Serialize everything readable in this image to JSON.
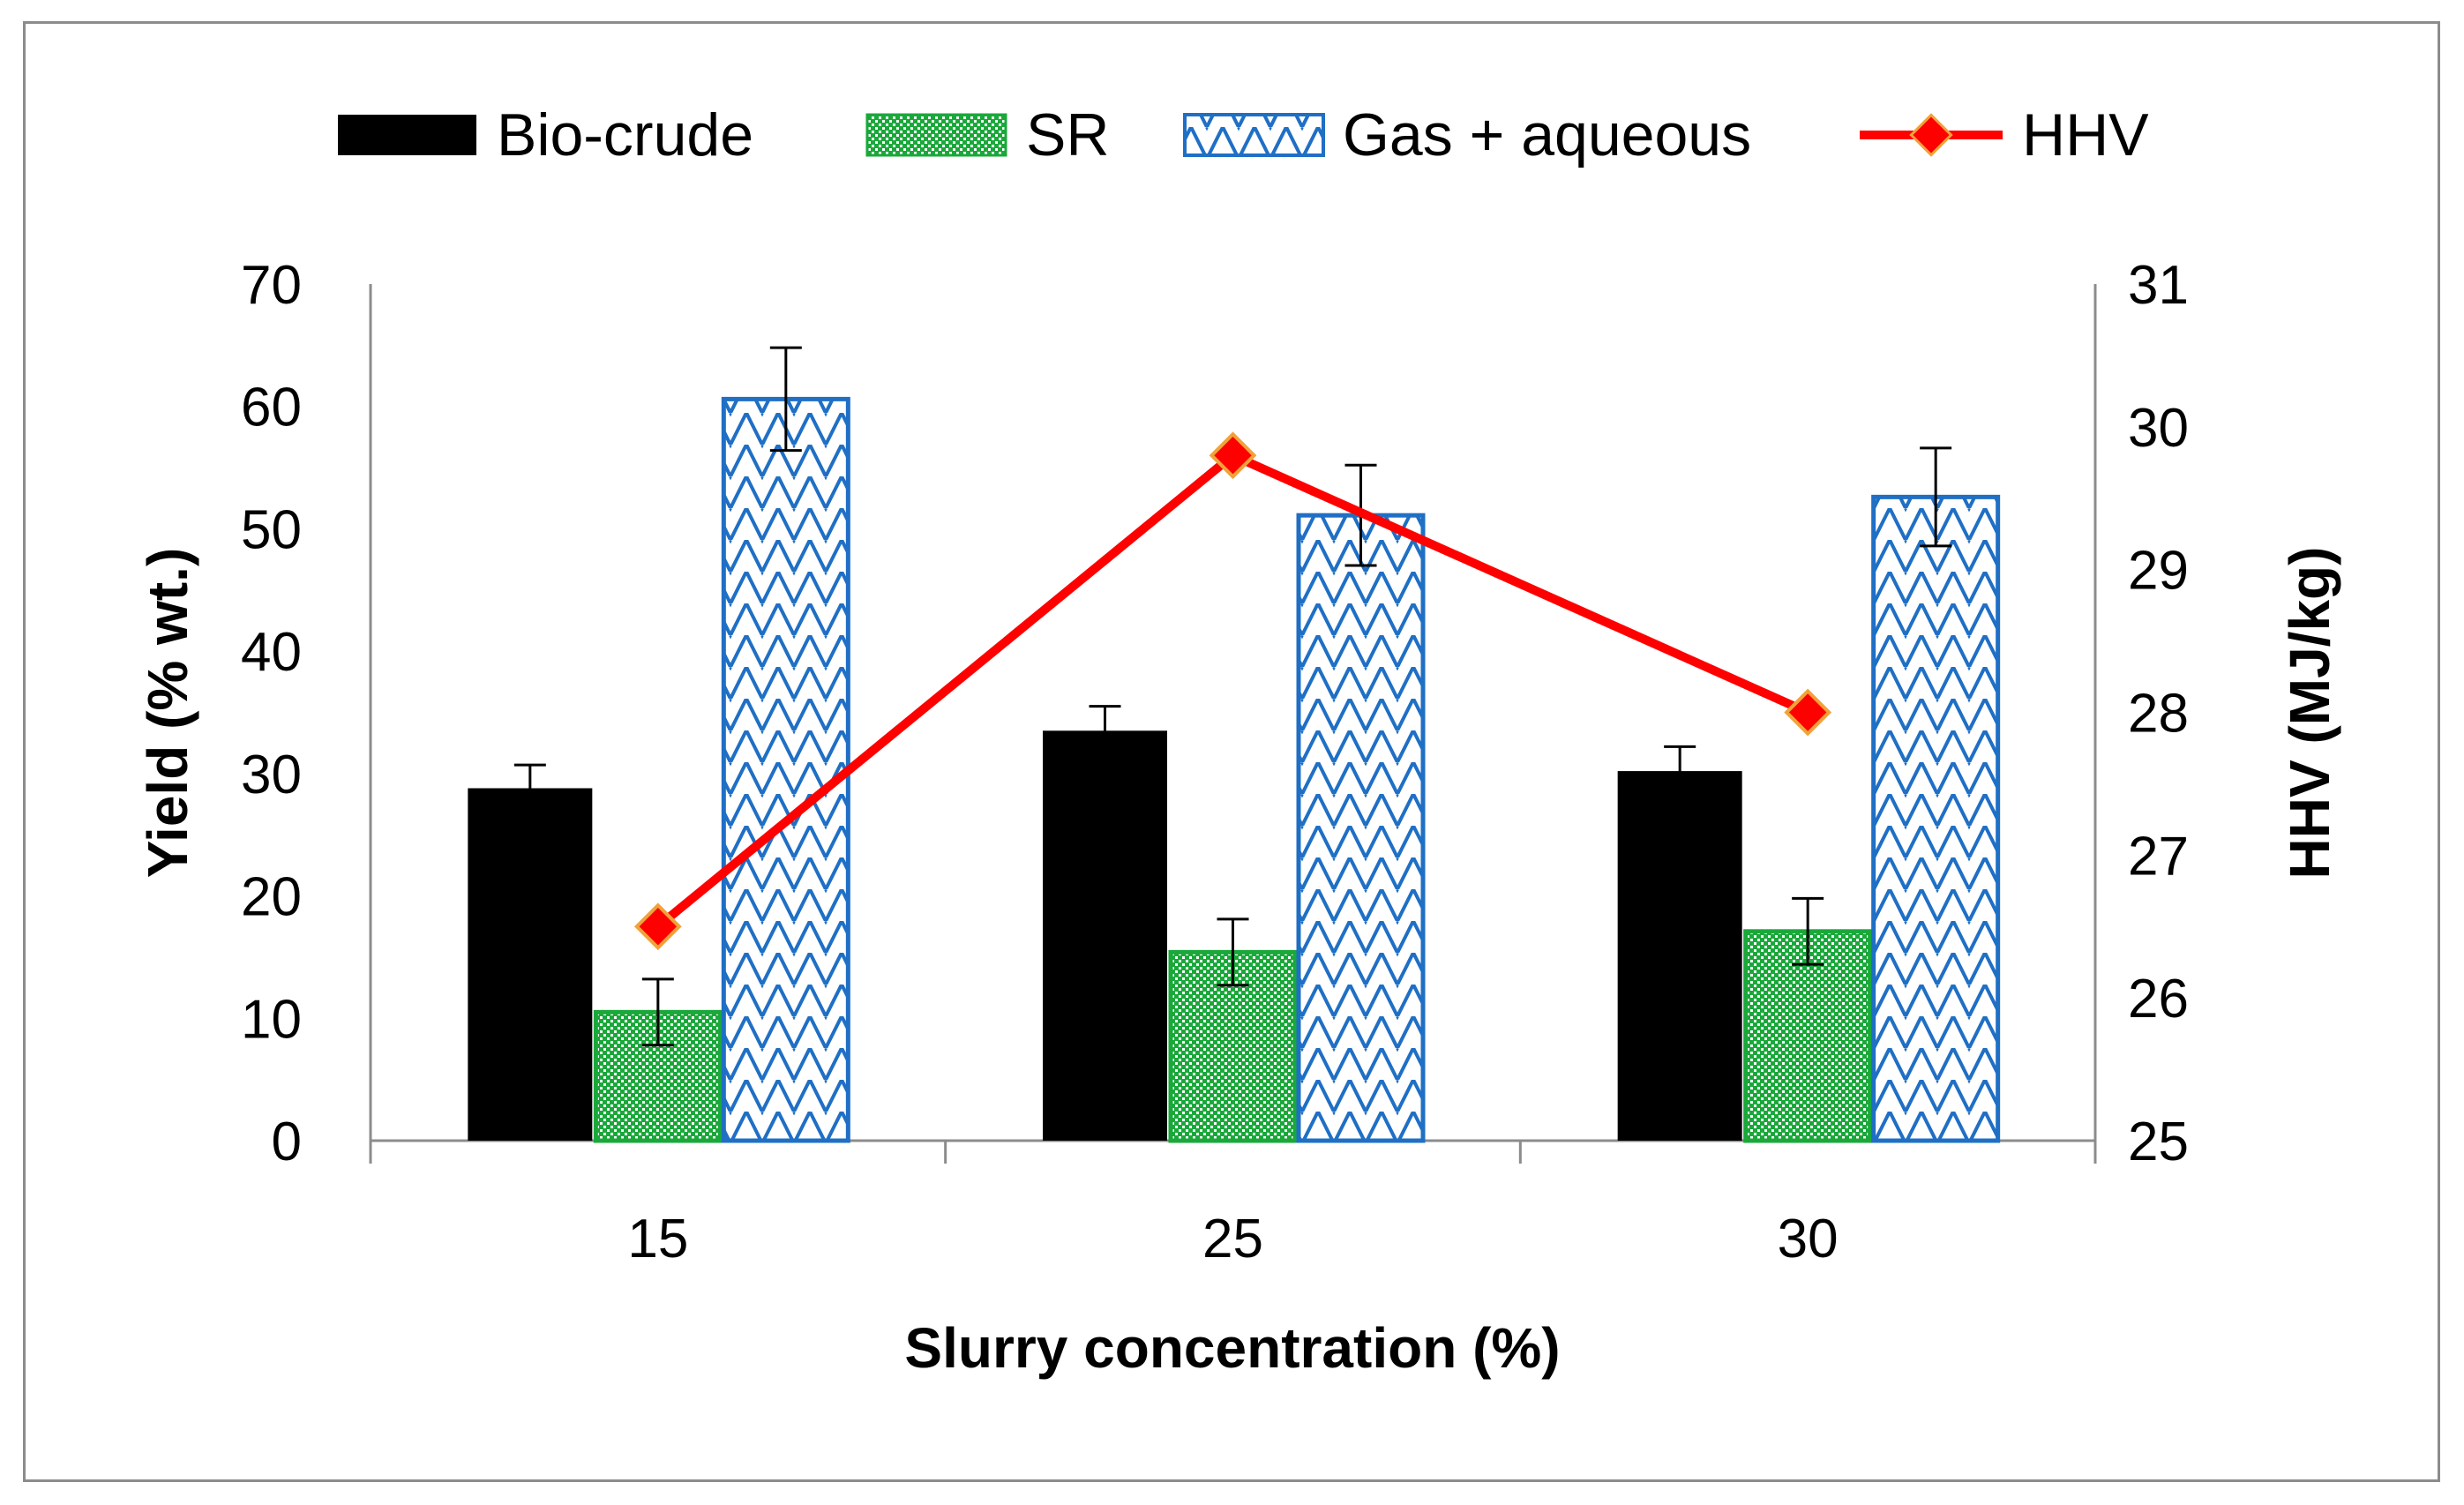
{
  "chart_data": {
    "type": "bar",
    "categories": [
      "15",
      "25",
      "30"
    ],
    "xlabel": "Slurry concentration (%)",
    "ylabel": "Yield (% wt.)",
    "ylabel_right": "HHV (MJ/kg)",
    "ylim": [
      0,
      70
    ],
    "yticks": [
      "0",
      "10",
      "20",
      "30",
      "40",
      "50",
      "60",
      "70"
    ],
    "ylim_right": [
      25,
      31
    ],
    "yticks_right": [
      "25",
      "26",
      "27",
      "28",
      "29",
      "30",
      "31"
    ],
    "series": [
      {
        "name": "Bio-crude",
        "kind": "bar",
        "values": [
          28.8,
          33.5,
          30.2
        ],
        "errors": [
          1.9,
          2.0,
          2.0
        ],
        "color": "#000000"
      },
      {
        "name": "SR",
        "kind": "bar",
        "values": [
          10.5,
          15.4,
          17.1
        ],
        "errors": [
          2.7,
          2.7,
          2.7
        ],
        "color": "#1aa83a"
      },
      {
        "name": "Gas + aqueous",
        "kind": "bar",
        "values": [
          60.6,
          51.1,
          52.6
        ],
        "errors": [
          4.2,
          4.1,
          4.0
        ],
        "color": "#1f6fc5"
      },
      {
        "name": "HHV",
        "kind": "line",
        "axis": "right",
        "values": [
          26.5,
          29.8,
          28.0
        ],
        "color": "#ff0000",
        "marker_color": "#e8572b"
      }
    ],
    "legend_position": "top"
  }
}
